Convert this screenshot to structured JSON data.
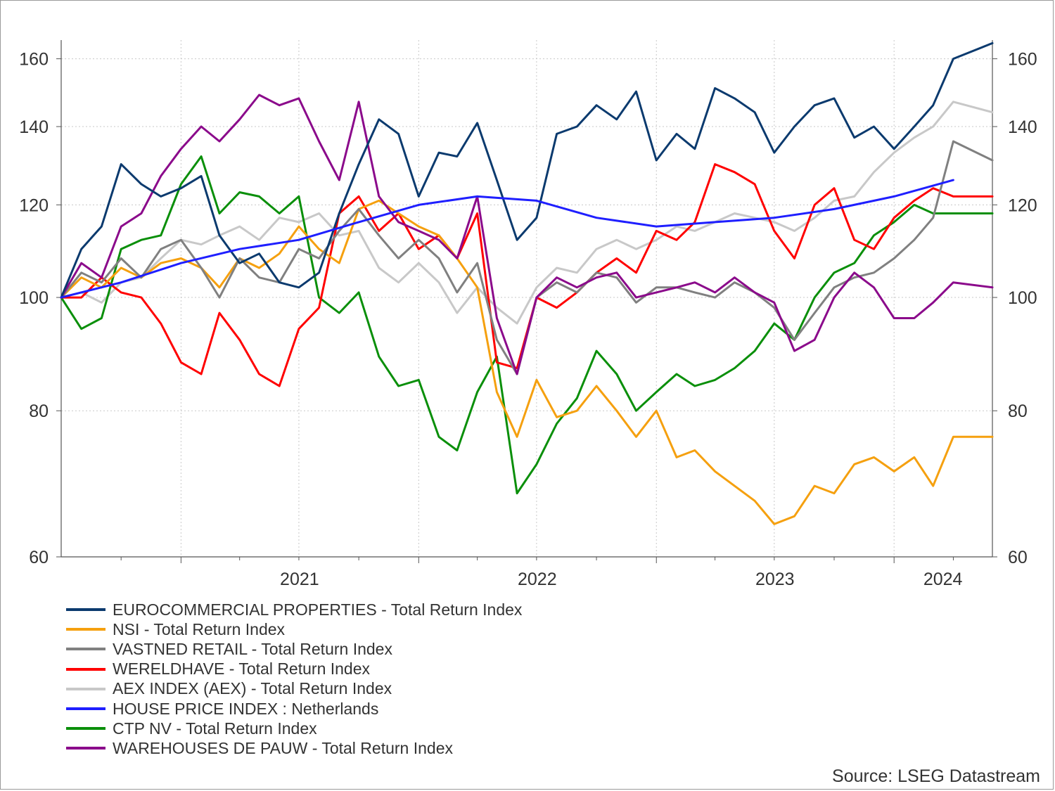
{
  "chart_data": {
    "type": "line",
    "y_scale": "log",
    "ylim": [
      60,
      166
    ],
    "y_ticks": [
      60,
      80,
      100,
      120,
      140,
      160
    ],
    "x_range": [
      "2020-07-01",
      "2024-05-31"
    ],
    "x_tick_labels": [
      "2021",
      "2022",
      "2023",
      "2024"
    ],
    "grid": true,
    "legend_position": "bottom-left",
    "source": "Source: LSEG Datastream",
    "series": [
      {
        "name": "EUROCOMMERCIAL PROPERTIES - Total Return Index",
        "color": "#0b3a6e",
        "x": [
          "2020-07-01",
          "2020-08-01",
          "2020-09-01",
          "2020-10-01",
          "2020-11-01",
          "2020-12-01",
          "2021-01-01",
          "2021-02-01",
          "2021-03-01",
          "2021-04-01",
          "2021-05-01",
          "2021-06-01",
          "2021-07-01",
          "2021-08-01",
          "2021-09-01",
          "2021-10-01",
          "2021-11-01",
          "2021-12-01",
          "2022-01-01",
          "2022-02-01",
          "2022-03-01",
          "2022-04-01",
          "2022-05-01",
          "2022-06-01",
          "2022-07-01",
          "2022-08-01",
          "2022-09-01",
          "2022-10-01",
          "2022-11-01",
          "2022-12-01",
          "2023-01-01",
          "2023-02-01",
          "2023-03-01",
          "2023-04-01",
          "2023-05-01",
          "2023-06-01",
          "2023-07-01",
          "2023-08-01",
          "2023-09-01",
          "2023-10-01",
          "2023-11-01",
          "2023-12-01",
          "2024-01-01",
          "2024-02-01",
          "2024-03-01",
          "2024-04-01",
          "2024-05-31"
        ],
        "values": [
          100,
          110,
          115,
          130,
          125,
          122,
          124,
          127,
          113,
          107,
          109,
          103,
          102,
          105,
          118,
          130,
          142,
          138,
          122,
          133,
          132,
          141,
          126,
          112,
          117,
          138,
          140,
          146,
          142,
          150,
          131,
          138,
          134,
          151,
          148,
          144,
          133,
          140,
          146,
          148,
          137,
          140,
          134,
          140,
          146,
          160,
          165
        ]
      },
      {
        "name": "NSI - Total Return Index",
        "color": "#f5a00f",
        "x": [
          "2020-07-01",
          "2020-08-01",
          "2020-09-01",
          "2020-10-01",
          "2020-11-01",
          "2020-12-01",
          "2021-01-01",
          "2021-02-01",
          "2021-03-01",
          "2021-04-01",
          "2021-05-01",
          "2021-06-01",
          "2021-07-01",
          "2021-08-01",
          "2021-09-01",
          "2021-10-01",
          "2021-11-01",
          "2021-12-01",
          "2022-01-01",
          "2022-02-01",
          "2022-03-01",
          "2022-04-01",
          "2022-05-01",
          "2022-06-01",
          "2022-07-01",
          "2022-08-01",
          "2022-09-01",
          "2022-10-01",
          "2022-11-01",
          "2022-12-01",
          "2023-01-01",
          "2023-02-01",
          "2023-03-01",
          "2023-04-01",
          "2023-05-01",
          "2023-06-01",
          "2023-07-01",
          "2023-08-01",
          "2023-09-01",
          "2023-10-01",
          "2023-11-01",
          "2023-12-01",
          "2024-01-01",
          "2024-02-01",
          "2024-03-01",
          "2024-04-01",
          "2024-05-31"
        ],
        "values": [
          100,
          104,
          102,
          106,
          104,
          107,
          108,
          106,
          102,
          108,
          106,
          109,
          115,
          110,
          107,
          119,
          121,
          118,
          115,
          113,
          108,
          102,
          83,
          76,
          85,
          79,
          80,
          84,
          80,
          76,
          80,
          73,
          74,
          71,
          69,
          67,
          64,
          65,
          69,
          68,
          72,
          73,
          71,
          73,
          69,
          76,
          76
        ]
      },
      {
        "name": "VASTNED RETAIL - Total Return Index",
        "color": "#808080",
        "x": [
          "2020-07-01",
          "2020-08-01",
          "2020-09-01",
          "2020-10-01",
          "2020-11-01",
          "2020-12-01",
          "2021-01-01",
          "2021-02-01",
          "2021-03-01",
          "2021-04-01",
          "2021-05-01",
          "2021-06-01",
          "2021-07-01",
          "2021-08-01",
          "2021-09-01",
          "2021-10-01",
          "2021-11-01",
          "2021-12-01",
          "2022-01-01",
          "2022-02-01",
          "2022-03-01",
          "2022-04-01",
          "2022-05-01",
          "2022-06-01",
          "2022-07-01",
          "2022-08-01",
          "2022-09-01",
          "2022-10-01",
          "2022-11-01",
          "2022-12-01",
          "2023-01-01",
          "2023-02-01",
          "2023-03-01",
          "2023-04-01",
          "2023-05-01",
          "2023-06-01",
          "2023-07-01",
          "2023-08-01",
          "2023-09-01",
          "2023-10-01",
          "2023-11-01",
          "2023-12-01",
          "2024-01-01",
          "2024-02-01",
          "2024-03-01",
          "2024-04-01",
          "2024-05-31"
        ],
        "values": [
          100,
          105,
          103,
          108,
          104,
          110,
          112,
          106,
          100,
          108,
          104,
          103,
          110,
          108,
          114,
          119,
          113,
          108,
          112,
          108,
          101,
          107,
          92,
          86,
          100,
          103,
          101,
          105,
          104,
          99,
          102,
          102,
          101,
          100,
          103,
          101,
          98,
          92,
          97,
          102,
          104,
          105,
          108,
          112,
          117,
          136,
          131
        ]
      },
      {
        "name": "WERELDHAVE - Total Return Index",
        "color": "#ff0000",
        "x": [
          "2020-07-01",
          "2020-08-01",
          "2020-09-01",
          "2020-10-01",
          "2020-11-01",
          "2020-12-01",
          "2021-01-01",
          "2021-02-01",
          "2021-03-01",
          "2021-04-01",
          "2021-05-01",
          "2021-06-01",
          "2021-07-01",
          "2021-08-01",
          "2021-09-01",
          "2021-10-01",
          "2021-11-01",
          "2021-12-01",
          "2022-01-01",
          "2022-02-01",
          "2022-03-01",
          "2022-04-01",
          "2022-05-01",
          "2022-06-01",
          "2022-07-01",
          "2022-08-01",
          "2022-09-01",
          "2022-10-01",
          "2022-11-01",
          "2022-12-01",
          "2023-01-01",
          "2023-02-01",
          "2023-03-01",
          "2023-04-01",
          "2023-05-01",
          "2023-06-01",
          "2023-07-01",
          "2023-08-01",
          "2023-09-01",
          "2023-10-01",
          "2023-11-01",
          "2023-12-01",
          "2024-01-01",
          "2024-02-01",
          "2024-03-01",
          "2024-04-01",
          "2024-05-31"
        ],
        "values": [
          100,
          100,
          104,
          101,
          100,
          95,
          88,
          86,
          97,
          92,
          86,
          84,
          94,
          98,
          118,
          122,
          114,
          118,
          110,
          113,
          108,
          118,
          88,
          87,
          100,
          98,
          101,
          105,
          108,
          105,
          114,
          112,
          116,
          130,
          128,
          125,
          114,
          108,
          120,
          124,
          112,
          110,
          117,
          121,
          124,
          122,
          122
        ]
      },
      {
        "name": "AEX INDEX (AEX) - Total Return Index",
        "color": "#c8c8c8",
        "x": [
          "2020-07-01",
          "2020-08-01",
          "2020-09-01",
          "2020-10-01",
          "2020-11-01",
          "2020-12-01",
          "2021-01-01",
          "2021-02-01",
          "2021-03-01",
          "2021-04-01",
          "2021-05-01",
          "2021-06-01",
          "2021-07-01",
          "2021-08-01",
          "2021-09-01",
          "2021-10-01",
          "2021-11-01",
          "2021-12-01",
          "2022-01-01",
          "2022-02-01",
          "2022-03-01",
          "2022-04-01",
          "2022-05-01",
          "2022-06-01",
          "2022-07-01",
          "2022-08-01",
          "2022-09-01",
          "2022-10-01",
          "2022-11-01",
          "2022-12-01",
          "2023-01-01",
          "2023-02-01",
          "2023-03-01",
          "2023-04-01",
          "2023-05-01",
          "2023-06-01",
          "2023-07-01",
          "2023-08-01",
          "2023-09-01",
          "2023-10-01",
          "2023-11-01",
          "2023-12-01",
          "2024-01-01",
          "2024-02-01",
          "2024-03-01",
          "2024-04-01",
          "2024-05-31"
        ],
        "values": [
          100,
          101,
          99,
          103,
          104,
          108,
          112,
          111,
          113,
          115,
          112,
          117,
          116,
          118,
          113,
          114,
          106,
          103,
          107,
          103,
          97,
          102,
          98,
          95,
          102,
          106,
          105,
          110,
          112,
          110,
          112,
          115,
          114,
          116,
          118,
          117,
          116,
          114,
          117,
          121,
          122,
          128,
          133,
          137,
          140,
          147,
          144
        ]
      },
      {
        "name": "HOUSE PRICE INDEX : Netherlands",
        "color": "#1f1fff",
        "x": [
          "2020-07-01",
          "2020-10-01",
          "2021-01-01",
          "2021-04-01",
          "2021-07-01",
          "2021-10-01",
          "2022-01-01",
          "2022-04-01",
          "2022-07-01",
          "2022-10-01",
          "2023-01-01",
          "2023-04-01",
          "2023-07-01",
          "2023-10-01",
          "2024-01-01",
          "2024-04-01"
        ],
        "values": [
          100,
          103,
          107,
          110,
          112,
          116,
          120,
          122,
          121,
          117,
          115,
          116,
          117,
          119,
          122,
          126
        ]
      },
      {
        "name": "CTP NV - Total Return Index",
        "color": "#0a8f0a",
        "x": [
          "2020-07-01",
          "2020-08-01",
          "2020-09-01",
          "2020-10-01",
          "2020-11-01",
          "2020-12-01",
          "2021-01-01",
          "2021-02-01",
          "2021-03-01",
          "2021-04-01",
          "2021-05-01",
          "2021-06-01",
          "2021-07-01",
          "2021-08-01",
          "2021-09-01",
          "2021-10-01",
          "2021-11-01",
          "2021-12-01",
          "2022-01-01",
          "2022-02-01",
          "2022-03-01",
          "2022-04-01",
          "2022-05-01",
          "2022-06-01",
          "2022-07-01",
          "2022-08-01",
          "2022-09-01",
          "2022-10-01",
          "2022-11-01",
          "2022-12-01",
          "2023-01-01",
          "2023-02-01",
          "2023-03-01",
          "2023-04-01",
          "2023-05-01",
          "2023-06-01",
          "2023-07-01",
          "2023-08-01",
          "2023-09-01",
          "2023-10-01",
          "2023-11-01",
          "2023-12-01",
          "2024-01-01",
          "2024-02-01",
          "2024-03-01",
          "2024-04-01",
          "2024-05-31"
        ],
        "values": [
          100,
          94,
          96,
          110,
          112,
          113,
          125,
          132,
          118,
          123,
          122,
          118,
          122,
          100,
          97,
          101,
          89,
          84,
          85,
          76,
          74,
          83,
          89,
          68,
          72,
          78,
          82,
          90,
          86,
          80,
          83,
          86,
          84,
          85,
          87,
          90,
          95,
          92,
          100,
          105,
          107,
          113,
          116,
          120,
          118,
          118,
          118
        ]
      },
      {
        "name": "WAREHOUSES DE PAUW - Total Return Index",
        "color": "#8b0a8b",
        "x": [
          "2020-07-01",
          "2020-08-01",
          "2020-09-01",
          "2020-10-01",
          "2020-11-01",
          "2020-12-01",
          "2021-01-01",
          "2021-02-01",
          "2021-03-01",
          "2021-04-01",
          "2021-05-01",
          "2021-06-01",
          "2021-07-01",
          "2021-08-01",
          "2021-09-01",
          "2021-10-01",
          "2021-11-01",
          "2021-12-01",
          "2022-01-01",
          "2022-02-01",
          "2022-03-01",
          "2022-04-01",
          "2022-05-01",
          "2022-06-01",
          "2022-07-01",
          "2022-08-01",
          "2022-09-01",
          "2022-10-01",
          "2022-11-01",
          "2022-12-01",
          "2023-01-01",
          "2023-02-01",
          "2023-03-01",
          "2023-04-01",
          "2023-05-01",
          "2023-06-01",
          "2023-07-01",
          "2023-08-01",
          "2023-09-01",
          "2023-10-01",
          "2023-11-01",
          "2023-12-01",
          "2024-01-01",
          "2024-02-01",
          "2024-03-01",
          "2024-04-01",
          "2024-05-31"
        ],
        "values": [
          100,
          107,
          104,
          115,
          118,
          127,
          134,
          140,
          136,
          142,
          149,
          146,
          148,
          136,
          126,
          147,
          122,
          116,
          114,
          112,
          108,
          122,
          96,
          86,
          100,
          104,
          102,
          104,
          105,
          100,
          101,
          102,
          103,
          101,
          104,
          101,
          99,
          90,
          92,
          100,
          105,
          102,
          96,
          96,
          99,
          103,
          102
        ]
      }
    ]
  }
}
